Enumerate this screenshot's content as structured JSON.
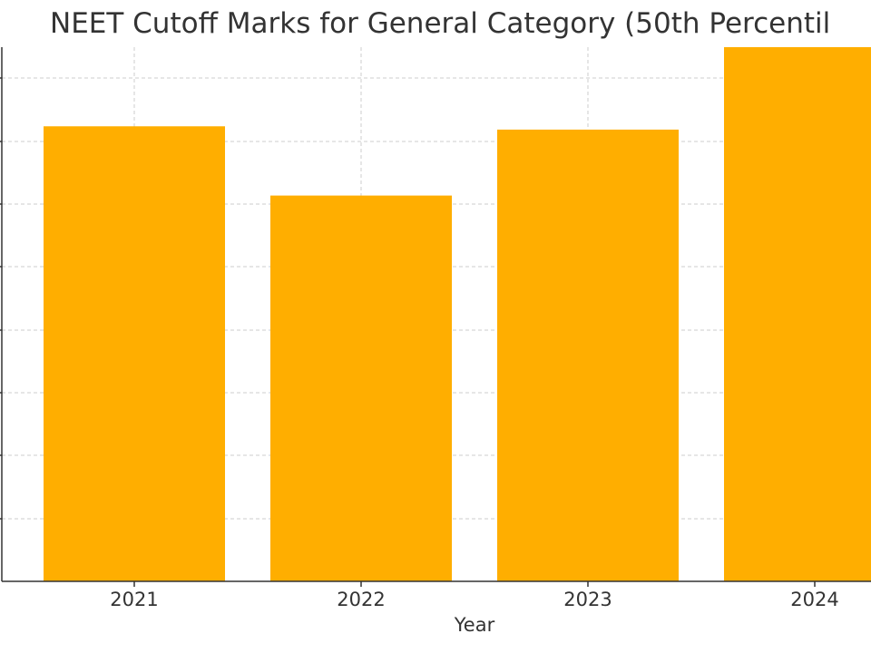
{
  "chart_data": {
    "type": "bar",
    "title": "NEET Cutoff Marks for General Category (50th Percentil",
    "xlabel": "Year",
    "ylabel": "",
    "categories": [
      "2021",
      "2022",
      "2023",
      "2024"
    ],
    "values": [
      138,
      117,
      137,
      162
    ],
    "ylim": [
      0,
      162
    ],
    "grid": true,
    "bar_color": "#FFAE00",
    "grid_color": "#CCCCCC",
    "axis_color": "#333333"
  }
}
